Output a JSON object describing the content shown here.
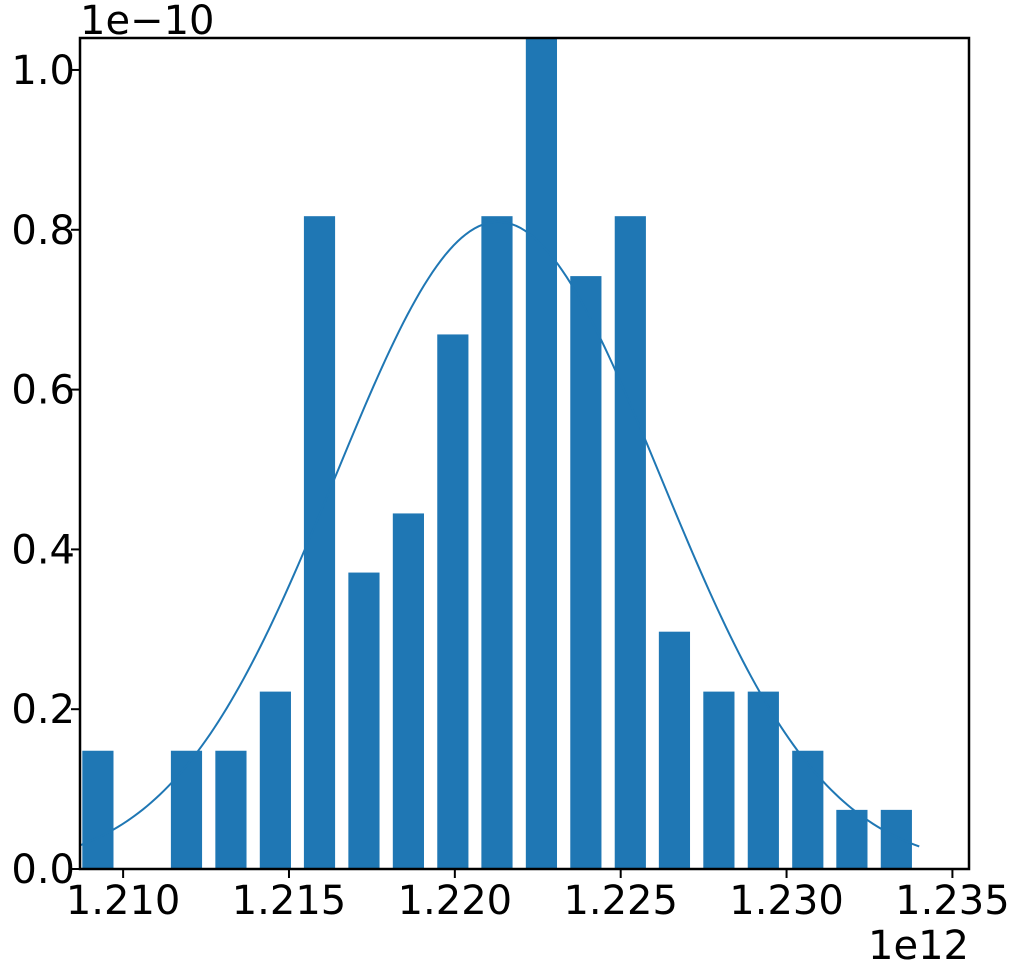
{
  "chart_data": {
    "type": "bar",
    "title": "",
    "xlabel": "",
    "ylabel": "",
    "x_offset_label": "1e12",
    "y_offset_label": "1e−10",
    "xlim": [
      1.2087,
      1.2355
    ],
    "ylim": [
      0,
      1.04
    ],
    "x_ticks": [
      1.21,
      1.215,
      1.22,
      1.225,
      1.23,
      1.235
    ],
    "x_tick_labels": [
      "1.210",
      "1.215",
      "1.220",
      "1.225",
      "1.230",
      "1.235"
    ],
    "y_ticks": [
      0.0,
      0.2,
      0.4,
      0.6,
      0.8,
      1.0
    ],
    "y_tick_labels": [
      "0.0",
      "0.2",
      "0.4",
      "0.6",
      "0.8",
      "1.0"
    ],
    "bar_width": 0.00094,
    "bars": {
      "x": [
        1.20924,
        1.21191,
        1.21325,
        1.21459,
        1.21592,
        1.21726,
        1.2186,
        1.21994,
        1.22127,
        1.22261,
        1.22395,
        1.22529,
        1.22662,
        1.22796,
        1.2293,
        1.23064,
        1.23197,
        1.23331
      ],
      "values": [
        0.148,
        0.148,
        0.148,
        0.222,
        0.817,
        0.371,
        0.445,
        0.669,
        0.817,
        1.04,
        0.742,
        0.817,
        0.297,
        0.222,
        0.222,
        0.148,
        0.074,
        0.074
      ]
    },
    "curve": {
      "type": "normal-density-fit",
      "mean": 1.2213,
      "sd": 0.0049,
      "peak": 0.81,
      "x_start": 1.2087,
      "x_end": 1.234
    },
    "grid": false,
    "legend": "none",
    "colors": {
      "bar": "#1f77b4",
      "curve": "#1f77b4",
      "axes": "#000000"
    }
  }
}
